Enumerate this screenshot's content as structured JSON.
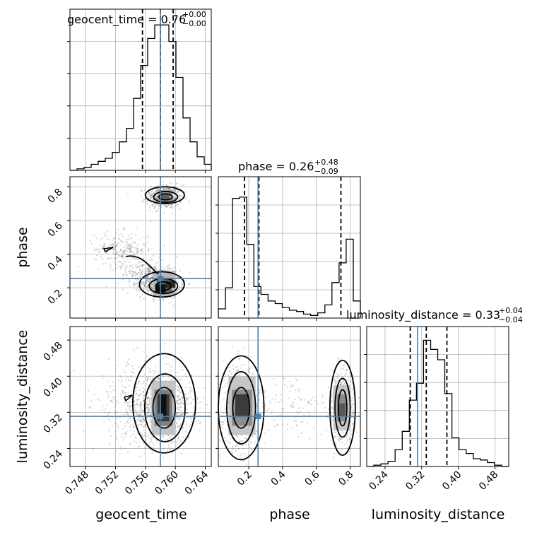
{
  "chart_data": {
    "type": "corner",
    "parameters": [
      "geocent_time",
      "phase",
      "luminosity_distance"
    ],
    "truths": [
      0.758,
      0.255,
      0.311
    ],
    "titles": [
      {
        "name": "geocent_time",
        "value": "0.76",
        "plus": "+0.00",
        "minus": "−0.00"
      },
      {
        "name": "phase",
        "value": "0.26",
        "plus": "+0.48",
        "minus": "−0.09"
      },
      {
        "name": "luminosity_distance",
        "value": "0.33",
        "plus": "+0.04",
        "minus": "−0.04"
      }
    ],
    "ranges": [
      [
        0.7459,
        0.7648
      ],
      [
        0.02,
        0.86
      ],
      [
        0.2,
        0.51
      ]
    ],
    "ticks": {
      "geocent_time": [
        0.748,
        0.752,
        0.756,
        0.76,
        0.764
      ],
      "phase_y": [
        0.2,
        0.4,
        0.6,
        0.8
      ],
      "phase_x": [
        0.2,
        0.4,
        0.6,
        0.8
      ],
      "luminosity_distance": [
        0.24,
        0.32,
        0.4,
        0.48
      ]
    },
    "tick_labels": {
      "geocent_time": [
        "0.748",
        "0.752",
        "0.756",
        "0.760",
        "0.764"
      ],
      "phase_y": [
        "0.2",
        "0.4",
        "0.6",
        "0.8"
      ],
      "phase_x": [
        "0.2",
        "0.4",
        "0.6",
        "0.8"
      ],
      "luminosity_distance": [
        "0.24",
        "0.32",
        "0.40",
        "0.48"
      ]
    },
    "quantiles": {
      "geocent_time": [
        0.7556,
        0.758,
        0.7597
      ],
      "phase": [
        0.175,
        0.26,
        0.745
      ],
      "luminosity_distance": [
        0.295,
        0.33,
        0.375
      ]
    },
    "hist_1d": {
      "geocent_time": [
        0,
        1,
        2,
        4,
        6,
        8,
        12,
        19,
        28,
        48,
        70,
        88,
        97,
        97,
        86,
        62,
        35,
        19,
        9,
        4
      ],
      "phase": [
        7,
        23,
        91,
        92,
        56,
        24,
        18,
        13,
        11,
        8,
        6,
        5,
        3,
        2,
        4,
        10,
        27,
        42,
        60,
        13
      ],
      "luminosity_distance": [
        0,
        1,
        2,
        4,
        13,
        27,
        51,
        64,
        97,
        90,
        82,
        56,
        22,
        13,
        10,
        6,
        5,
        3,
        1,
        0
      ]
    },
    "grid": true
  }
}
